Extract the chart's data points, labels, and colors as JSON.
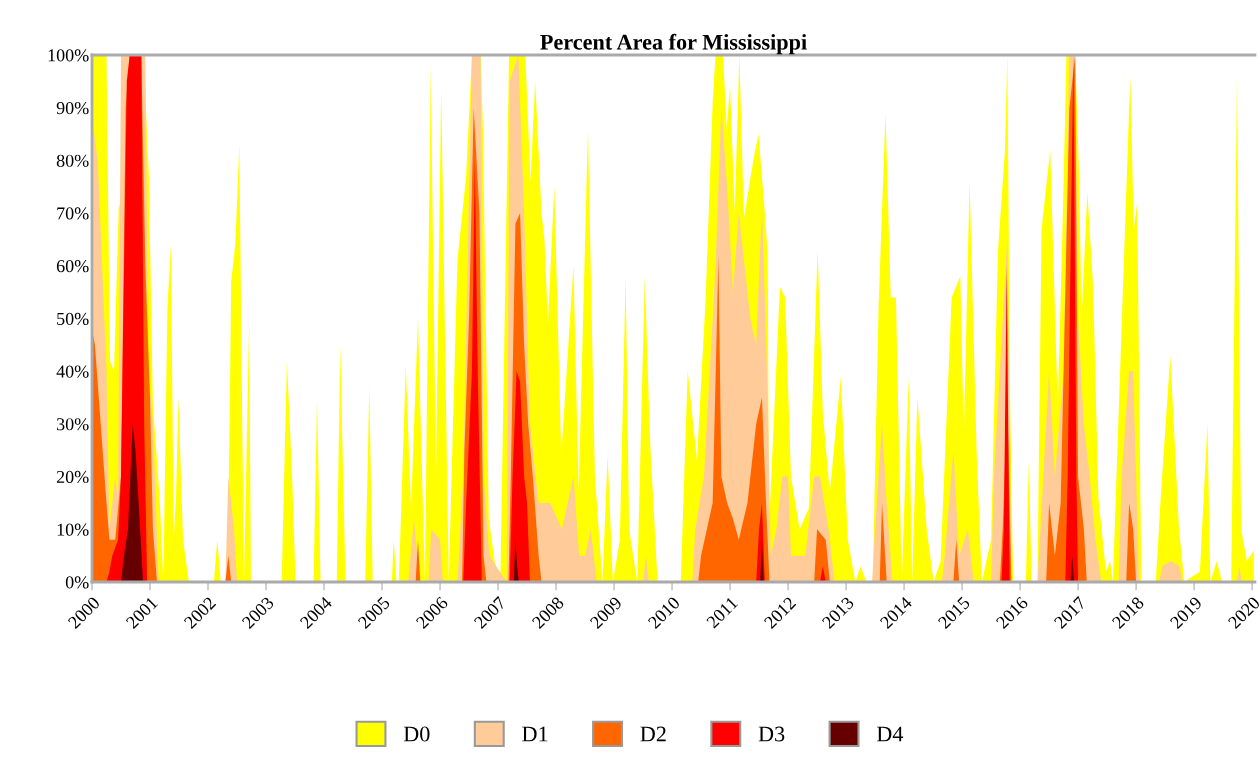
{
  "chart_data": {
    "type": "area",
    "title": "Percent Area for Mississippi",
    "xlim": [
      2000,
      2020.05
    ],
    "xticks": [
      2000,
      2001,
      2002,
      2003,
      2004,
      2005,
      2006,
      2007,
      2008,
      2009,
      2010,
      2011,
      2012,
      2013,
      2014,
      2015,
      2016,
      2017,
      2018,
      2019,
      2020
    ],
    "ylim": [
      0,
      100
    ],
    "yticks": [
      {
        "value": 0,
        "label": "0%"
      },
      {
        "value": 10,
        "label": "10%"
      },
      {
        "value": 20,
        "label": "20%"
      },
      {
        "value": 30,
        "label": "30%"
      },
      {
        "value": 40,
        "label": "40%"
      },
      {
        "value": 50,
        "label": "50%"
      },
      {
        "value": 60,
        "label": "60%"
      },
      {
        "value": 70,
        "label": "70%"
      },
      {
        "value": 80,
        "label": "80%"
      },
      {
        "value": 90,
        "label": "90%"
      },
      {
        "value": 100,
        "label": "100%"
      }
    ],
    "grid": false,
    "legend": "bottom",
    "series": [
      {
        "name": "D0",
        "color": "#ffff00",
        "x": [
          2000.0,
          2000.25,
          2000.31,
          2000.38,
          2000.46,
          2000.52,
          2000.56,
          2000.89,
          2000.98,
          2001.05,
          2001.17,
          2001.23,
          2001.3,
          2001.36,
          2001.41,
          2001.45,
          2001.49,
          2001.57,
          2001.67,
          2002.1,
          2002.16,
          2002.22,
          2002.34,
          2002.4,
          2002.47,
          2002.54,
          2002.62,
          2002.71,
          2002.74,
          2003.27,
          2003.36,
          2003.45,
          2003.51,
          2003.82,
          2003.88,
          2003.94,
          2004.22,
          2004.28,
          2004.37,
          2004.71,
          2004.78,
          2004.84,
          2005.17,
          2005.2,
          2005.25,
          2005.29,
          2005.41,
          2005.5,
          2005.62,
          2005.74,
          2005.84,
          2005.93,
          2006.02,
          2006.15,
          2006.3,
          2006.45,
          2006.55,
          2006.7,
          2006.74,
          2006.84,
          2006.94,
          2007.04,
          2007.19,
          2007.47,
          2007.56,
          2007.64,
          2007.75,
          2007.8,
          2007.86,
          2007.97,
          2008.09,
          2008.3,
          2008.39,
          2008.55,
          2008.67,
          2008.8,
          2008.89,
          2008.98,
          2009.1,
          2009.2,
          2009.26,
          2009.4,
          2009.53,
          2009.62,
          2009.75,
          2010.15,
          2010.27,
          2010.43,
          2010.58,
          2010.7,
          2010.75,
          2010.88,
          2010.94,
          2011.0,
          2011.08,
          2011.16,
          2011.24,
          2011.4,
          2011.49,
          2011.6,
          2011.65,
          2011.67,
          2011.86,
          2011.95,
          2012.05,
          2012.2,
          2012.36,
          2012.51,
          2012.6,
          2012.72,
          2012.91,
          2013.03,
          2013.16,
          2013.25,
          2013.35,
          2013.46,
          2013.56,
          2013.68,
          2013.77,
          2013.86,
          2013.96,
          2014.08,
          2014.14,
          2014.23,
          2014.39,
          2014.51,
          2014.63,
          2014.82,
          2014.97,
          2015.03,
          2015.13,
          2015.25,
          2015.34,
          2015.5,
          2015.62,
          2015.74,
          2015.78,
          2015.83,
          2015.88,
          2016.1,
          2016.15,
          2016.2,
          2016.3,
          2016.37,
          2016.52,
          2016.65,
          2016.74,
          2016.8,
          2016.95,
          2017.02,
          2017.06,
          2017.16,
          2017.26,
          2017.35,
          2017.48,
          2017.55,
          2017.6,
          2017.79,
          2017.9,
          2017.96,
          2018.02,
          2018.09,
          2018.34,
          2018.43,
          2018.59,
          2018.74,
          2018.83,
          2019.1,
          2019.23,
          2019.28,
          2019.39,
          2019.48,
          2019.64,
          2019.74,
          2019.81,
          2019.91,
          2020.03
        ],
        "values": [
          100,
          100,
          42,
          40,
          71,
          73,
          100,
          100,
          77,
          34,
          15,
          0,
          52,
          64,
          8,
          17,
          35,
          8,
          0,
          0,
          8,
          0,
          0,
          57,
          64,
          83,
          0,
          50,
          0,
          0,
          42,
          20,
          0,
          0,
          35,
          0,
          0,
          45,
          0,
          0,
          37,
          0,
          0,
          8,
          0,
          0,
          41,
          14,
          50,
          0,
          98,
          20,
          94,
          0,
          61,
          77,
          100,
          100,
          86,
          12,
          4,
          0,
          100,
          100,
          76,
          95,
          70,
          65,
          49,
          75,
          24,
          60,
          17,
          86,
          20,
          0,
          24,
          0,
          8,
          58,
          10,
          0,
          58,
          27,
          0,
          0,
          40,
          23,
          54,
          91,
          100,
          100,
          86,
          94,
          70,
          100,
          69,
          80,
          85,
          70,
          62,
          10,
          56,
          54,
          20,
          10,
          14,
          63,
          32,
          17,
          39,
          8,
          0,
          3,
          0,
          0,
          52,
          89,
          54,
          54,
          0,
          39,
          0,
          35,
          10,
          0,
          4,
          54,
          58,
          28,
          76,
          25,
          0,
          8,
          63,
          82,
          100,
          33,
          0,
          0,
          23,
          0,
          0,
          67,
          82,
          33,
          71,
          100,
          100,
          76,
          50,
          74,
          56,
          16,
          2,
          4,
          0,
          61,
          96,
          67,
          72,
          0,
          0,
          17,
          43,
          10,
          0,
          2,
          30,
          0,
          4,
          0,
          0,
          96,
          10,
          4,
          6
        ]
      },
      {
        "name": "D1",
        "color": "#ffcc99",
        "x": [
          2000.0,
          2000.1,
          2000.25,
          2000.3,
          2000.4,
          2000.45,
          2000.5,
          2000.92,
          2000.97,
          2001.05,
          2001.1,
          2001.15,
          2002.3,
          2002.35,
          2002.45,
          2002.5,
          2005.45,
          2005.55,
          2005.65,
          2005.8,
          2005.85,
          2006.0,
          2006.05,
          2006.3,
          2006.4,
          2006.55,
          2006.7,
          2006.75,
          2006.85,
          2007.15,
          2007.2,
          2007.35,
          2007.45,
          2007.55,
          2007.7,
          2007.9,
          2008.1,
          2008.3,
          2008.4,
          2008.5,
          2008.6,
          2008.7,
          2009.5,
          2009.55,
          2009.6,
          2010.35,
          2010.4,
          2010.55,
          2010.6,
          2010.75,
          2010.85,
          2010.95,
          2011.05,
          2011.15,
          2011.25,
          2011.35,
          2011.45,
          2011.55,
          2011.65,
          2011.7,
          2011.8,
          2011.9,
          2012.0,
          2012.05,
          2012.3,
          2012.45,
          2012.55,
          2012.7,
          2012.8,
          2013.45,
          2013.5,
          2013.62,
          2013.7,
          2013.8,
          2014.65,
          2014.7,
          2014.85,
          2014.95,
          2015.1,
          2015.2,
          2015.5,
          2015.55,
          2015.65,
          2015.78,
          2015.85,
          2016.3,
          2016.35,
          2016.5,
          2016.6,
          2016.75,
          2016.85,
          2016.95,
          2017.0,
          2017.1,
          2017.2,
          2017.3,
          2017.4,
          2017.7,
          2017.75,
          2017.88,
          2017.95,
          2018.05,
          2018.4,
          2018.45,
          2018.6,
          2018.75,
          2018.8,
          2019.74,
          2019.78,
          2019.82
        ],
        "values": [
          88,
          80,
          40,
          10,
          20,
          15,
          100,
          100,
          40,
          30,
          15,
          0,
          0,
          20,
          10,
          0,
          0,
          12,
          0,
          0,
          10,
          8,
          0,
          0,
          20,
          100,
          100,
          20,
          5,
          0,
          95,
          100,
          70,
          30,
          15,
          15,
          10,
          20,
          5,
          5,
          10,
          0,
          0,
          5,
          0,
          0,
          10,
          20,
          30,
          60,
          90,
          75,
          55,
          70,
          60,
          50,
          45,
          71,
          35,
          5,
          10,
          20,
          20,
          5,
          5,
          20,
          20,
          10,
          0,
          0,
          10,
          30,
          15,
          0,
          0,
          5,
          25,
          5,
          10,
          0,
          0,
          20,
          40,
          65,
          0,
          0,
          10,
          40,
          20,
          40,
          100,
          100,
          50,
          30,
          20,
          8,
          0,
          0,
          20,
          40,
          40,
          0,
          0,
          3,
          4,
          3,
          0,
          0,
          3,
          0
        ]
      },
      {
        "name": "D2",
        "color": "#ff6600",
        "x": [
          2000.0,
          2000.05,
          2000.15,
          2000.25,
          2000.3,
          2000.4,
          2000.5,
          2000.58,
          2000.65,
          2000.85,
          2000.92,
          2001.0,
          2001.05,
          2001.12,
          2002.3,
          2002.35,
          2002.4,
          2005.58,
          2005.62,
          2005.66,
          2006.38,
          2006.42,
          2006.5,
          2006.58,
          2006.68,
          2006.75,
          2006.8,
          2007.18,
          2007.22,
          2007.3,
          2007.38,
          2007.45,
          2007.52,
          2007.6,
          2007.7,
          2007.75,
          2010.45,
          2010.5,
          2010.7,
          2010.8,
          2010.85,
          2010.95,
          2011.05,
          2011.15,
          2011.3,
          2011.45,
          2011.55,
          2011.62,
          2011.68,
          2012.45,
          2012.5,
          2012.65,
          2012.72,
          2013.58,
          2013.62,
          2013.7,
          2014.85,
          2014.9,
          2014.95,
          2015.65,
          2015.7,
          2015.78,
          2015.85,
          2016.45,
          2016.5,
          2016.6,
          2016.7,
          2016.85,
          2016.95,
          2017.0,
          2017.1,
          2017.15,
          2017.83,
          2017.88,
          2017.95,
          2018.0
        ],
        "values": [
          48,
          45,
          30,
          15,
          8,
          8,
          20,
          90,
          100,
          100,
          60,
          35,
          10,
          0,
          0,
          5,
          0,
          0,
          8,
          0,
          0,
          25,
          50,
          90,
          70,
          5,
          0,
          0,
          20,
          68,
          70,
          45,
          30,
          20,
          5,
          0,
          0,
          5,
          15,
          62,
          20,
          15,
          12,
          8,
          15,
          30,
          35,
          15,
          0,
          0,
          10,
          8,
          0,
          0,
          15,
          0,
          0,
          8,
          0,
          0,
          10,
          35,
          0,
          0,
          15,
          5,
          15,
          90,
          100,
          20,
          10,
          0,
          0,
          15,
          10,
          0
        ]
      },
      {
        "name": "D3",
        "color": "#ff0000",
        "x": [
          2000.25,
          2000.3,
          2000.35,
          2000.45,
          2000.5,
          2000.6,
          2000.65,
          2000.85,
          2000.9,
          2000.95,
          2006.4,
          2006.45,
          2006.55,
          2006.6,
          2006.65,
          2006.72,
          2007.2,
          2007.25,
          2007.32,
          2007.38,
          2007.45,
          2007.5,
          2007.55,
          2011.45,
          2011.5,
          2011.55,
          2011.6,
          2012.55,
          2012.6,
          2012.65,
          2015.68,
          2015.72,
          2015.77,
          2015.82,
          2016.78,
          2016.82,
          2016.88,
          2016.92,
          2016.97,
          2017.0
        ],
        "values": [
          0,
          2,
          5,
          8,
          20,
          95,
          100,
          100,
          30,
          0,
          0,
          15,
          40,
          80,
          40,
          0,
          0,
          20,
          40,
          38,
          20,
          15,
          0,
          0,
          10,
          15,
          0,
          0,
          3,
          0,
          0,
          10,
          60,
          0,
          0,
          20,
          70,
          100,
          20,
          0
        ]
      },
      {
        "name": "D4",
        "color": "#660000",
        "x": [
          2000.5,
          2000.55,
          2000.62,
          2000.7,
          2000.75,
          2000.82,
          2000.88,
          2007.27,
          2007.3,
          2007.33,
          2007.36,
          2011.52,
          2011.55,
          2011.58,
          2016.87,
          2016.9,
          2016.93
        ],
        "values": [
          0,
          5,
          10,
          30,
          25,
          12,
          0,
          0,
          8,
          3,
          0,
          0,
          8,
          0,
          0,
          5,
          0
        ]
      }
    ]
  }
}
